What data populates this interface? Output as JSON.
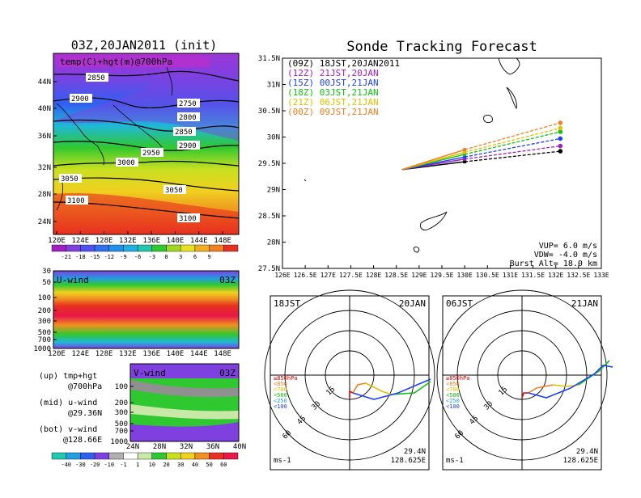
{
  "left_panel": {
    "title": "03Z,20JAN2011 (init)",
    "map_label": "temp(C)+hgt(m)@700hPa",
    "lat_ticks": [
      "44N",
      "40N",
      "36N",
      "32N",
      "28N",
      "24N"
    ],
    "lon_ticks": [
      "120E",
      "124E",
      "128E",
      "132E",
      "136E",
      "140E",
      "144E",
      "148E"
    ],
    "contour_labels": [
      "2850",
      "2900",
      "2750",
      "2800",
      "2850",
      "2900",
      "2950",
      "3000",
      "3050",
      "3050",
      "3100",
      "3100"
    ],
    "colorbar_labels": [
      "-21",
      "-18",
      "-15",
      "-12",
      "-9",
      "-6",
      "-3",
      "0",
      "3",
      "6",
      "9"
    ]
  },
  "u_panel": {
    "label": "U-wind",
    "time": "03Z",
    "yticks": [
      "30",
      "50",
      "100",
      "200",
      "300",
      "500",
      "700",
      "1000"
    ],
    "xticks": [
      "120E",
      "124E",
      "128E",
      "132E",
      "136E",
      "140E",
      "144E",
      "148E"
    ]
  },
  "v_panel": {
    "label": "V-wind",
    "time": "03Z",
    "yticks": [
      "100",
      "200",
      "300",
      "500",
      "700",
      "1000"
    ],
    "xticks": [
      "24N",
      "28N",
      "32N",
      "36N",
      "40N"
    ],
    "colorbar_labels": [
      "-40",
      "-30",
      "-20",
      "-10",
      "-1",
      "1",
      "10",
      "20",
      "30",
      "40",
      "50",
      "60"
    ]
  },
  "notes": {
    "up": "(up) tmp+hgt",
    "up2": "@700hPa",
    "mid": "(mid) u-wind",
    "mid2": "@29.36N",
    "bot": "(bot) v-wind",
    "bot2": "@128.66E"
  },
  "track_panel": {
    "title": "Sonde Tracking Forecast",
    "legend": [
      {
        "label": "(09Z) 18JST,20JAN2011",
        "color": "#000000"
      },
      {
        "label": "(12Z) 21JST,20JAN",
        "color": "#a020c0"
      },
      {
        "label": "(15Z) 00JST,21JAN",
        "color": "#2040ff"
      },
      {
        "label": "(18Z) 03JST,21JAN",
        "color": "#10c010"
      },
      {
        "label": "(21Z) 06JST,21JAN",
        "color": "#e0c000"
      },
      {
        "label": "(00Z) 09JST,21JAN",
        "color": "#f08020"
      }
    ],
    "info": [
      "VUP= 6.0 m/s",
      "VDW= -4.0 m/s",
      "Burst Alt= 18.0 km"
    ]
  },
  "hodo_left": {
    "time": "18JST",
    "date": "20JAN",
    "lat": "29.4N",
    "lon": "128.625E",
    "unit": "ms-1"
  },
  "hodo_right": {
    "time": "06JST",
    "date": "21JAN",
    "lat": "29.4N",
    "lon": "128.625E",
    "unit": "ms-1"
  },
  "hodo_legend": [
    "≥850hPa",
    "<850",
    "<700",
    "<500",
    "<250",
    "<100"
  ],
  "hodo_ring_labels": [
    "15",
    "30",
    "45",
    "60"
  ],
  "chart_data": {
    "type": "line",
    "title": "Sonde Tracking Forecast",
    "xlim": [
      126,
      133
    ],
    "ylim": [
      27.5,
      31.5
    ],
    "xticks": [
      "126E",
      "126.5E",
      "127E",
      "127.5E",
      "128E",
      "128.5E",
      "129E",
      "129.5E",
      "130E",
      "130.5E",
      "131E",
      "131.5E",
      "132E",
      "132.5E",
      "133E"
    ],
    "yticks": [
      "27.5N",
      "28N",
      "28.5N",
      "29N",
      "29.5N",
      "30N",
      "30.5N",
      "31N",
      "31.5N"
    ],
    "series": [
      {
        "name": "(09Z) 18JST,20JAN2011",
        "x": [
          128.62,
          130.0,
          132.1
        ],
        "y": [
          29.38,
          29.53,
          29.73
        ]
      },
      {
        "name": "(12Z) 21JST,20JAN",
        "x": [
          128.62,
          130.0,
          132.1
        ],
        "y": [
          29.38,
          29.58,
          29.83
        ]
      },
      {
        "name": "(15Z) 00JST,21JAN",
        "x": [
          128.62,
          130.0,
          132.1
        ],
        "y": [
          29.38,
          29.62,
          29.97
        ]
      },
      {
        "name": "(18Z) 03JST,21JAN",
        "x": [
          128.62,
          130.0,
          132.1
        ],
        "y": [
          29.38,
          29.67,
          30.1
        ]
      },
      {
        "name": "(21Z) 06JST,21JAN",
        "x": [
          128.62,
          130.0,
          132.1
        ],
        "y": [
          29.38,
          29.71,
          30.17
        ]
      },
      {
        "name": "(00Z) 09JST,21JAN",
        "x": [
          128.62,
          130.0,
          132.1
        ],
        "y": [
          29.38,
          29.76,
          30.27
        ]
      }
    ]
  }
}
